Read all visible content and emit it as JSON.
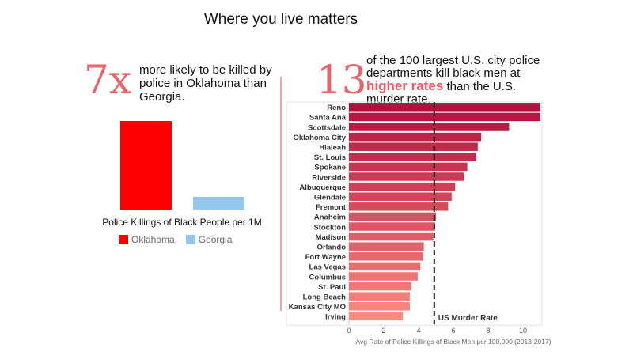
{
  "title": "Where you live matters",
  "left_panel": {
    "stat": "7x",
    "text": "more likely to be killed by police in Oklahoma than Georgia.",
    "chart_label": "Police Killings of Black People per 1M",
    "legend": [
      {
        "label": "Oklahoma",
        "color": "#ff0000"
      },
      {
        "label": "Georgia",
        "color": "#93c7f0"
      }
    ]
  },
  "right_panel": {
    "stat": "13",
    "text_before": "of the 100 largest U.S. city police departments kill black men at ",
    "text_highlight": "higher rates",
    "text_after": " than the U.S. murder rate."
  },
  "chart_data": [
    {
      "type": "bar",
      "categories": [
        "Oklahoma",
        "Georgia"
      ],
      "values": [
        7,
        1
      ],
      "xlabel": "Police Killings of Black People per 1M",
      "colors": [
        "#ff0000",
        "#93c7f0"
      ],
      "legend": "bottom"
    },
    {
      "type": "bar",
      "orientation": "horizontal",
      "categories": [
        "Reno",
        "Santa Ana",
        "Scottsdale",
        "Oklahoma City",
        "Hialeah",
        "St. Louis",
        "Spokane",
        "Riverside",
        "Albuquerque",
        "Glendale",
        "Fremont",
        "Anaheim",
        "Stockton",
        "Madison",
        "Orlando",
        "Fort Wayne",
        "Las Vegas",
        "Columbus",
        "St. Paul",
        "Long Beach",
        "Kansas City MO",
        "Irving"
      ],
      "values": [
        11.2,
        11.0,
        9.2,
        7.6,
        7.4,
        7.3,
        6.8,
        6.6,
        6.1,
        5.9,
        5.7,
        5.0,
        4.95,
        4.85,
        4.3,
        4.25,
        4.1,
        3.95,
        3.6,
        3.5,
        3.5,
        3.1
      ],
      "color_range": [
        "#b3103e",
        "#f98c7e"
      ],
      "xlabel": "Avg Rate of Police Killings of Black Men per 100,000 (2013-2017)",
      "xlim": [
        0,
        11
      ],
      "xticks": [
        0,
        2,
        4,
        6,
        8,
        10
      ],
      "reference_line": {
        "value": 4.9,
        "label": "US Murder Rate"
      },
      "grid": false
    }
  ]
}
